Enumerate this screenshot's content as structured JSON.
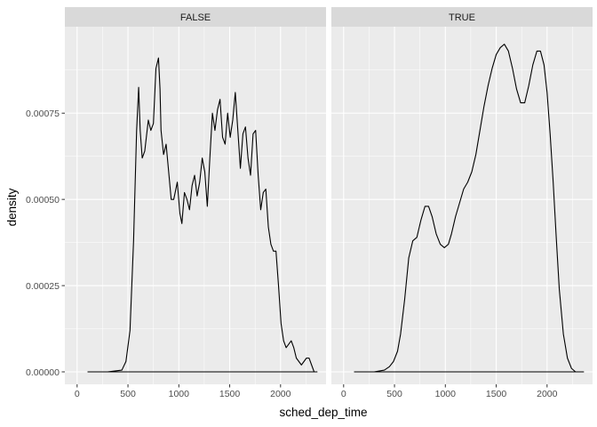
{
  "chart_data": {
    "type": "area",
    "geom": "density",
    "xlabel": "sched_dep_time",
    "ylabel": "density",
    "xlim": [
      0,
      2400
    ],
    "ylim": [
      0,
      0.00095
    ],
    "x_ticks": [
      0,
      500,
      1000,
      1500,
      2000
    ],
    "x_tick_labels": [
      "0",
      "500",
      "1000",
      "1500",
      "2000"
    ],
    "y_ticks": [
      0,
      0.00025,
      0.0005,
      0.00075
    ],
    "y_tick_labels": [
      "0.00000",
      "0.00025",
      "0.00050",
      "0.00075"
    ],
    "grid": true,
    "colors": {
      "panel_bg": "#EBEBEB",
      "strip_bg": "#D9D9D9",
      "grid_major": "#FFFFFF",
      "line": "#000000"
    },
    "panels": [
      {
        "strip_label": "FALSE",
        "x": [
          106,
          300,
          440,
          480,
          520,
          555,
          585,
          605,
          620,
          640,
          665,
          700,
          725,
          750,
          775,
          800,
          815,
          825,
          850,
          875,
          900,
          925,
          950,
          985,
          1010,
          1030,
          1055,
          1080,
          1105,
          1130,
          1155,
          1180,
          1205,
          1230,
          1255,
          1280,
          1305,
          1330,
          1355,
          1380,
          1405,
          1430,
          1455,
          1480,
          1505,
          1530,
          1555,
          1580,
          1605,
          1630,
          1655,
          1680,
          1705,
          1730,
          1755,
          1780,
          1805,
          1830,
          1855,
          1880,
          1905,
          1930,
          1955,
          1980,
          2005,
          2030,
          2055,
          2080,
          2105,
          2130,
          2155,
          2180,
          2205,
          2230,
          2255,
          2280,
          2305,
          2330,
          2350,
          2355,
          2359
        ],
        "y": [
          0,
          0,
          5e-06,
          3e-05,
          0.00012,
          0.00038,
          0.0007,
          0.000825,
          0.0007,
          0.00062,
          0.00064,
          0.00073,
          0.0007,
          0.00072,
          0.00088,
          0.00091,
          0.00082,
          0.0007,
          0.00063,
          0.00066,
          0.00058,
          0.0005,
          0.0005,
          0.00055,
          0.00046,
          0.00043,
          0.00052,
          0.0005,
          0.00047,
          0.00054,
          0.00057,
          0.00051,
          0.00055,
          0.00062,
          0.00058,
          0.00048,
          0.00062,
          0.00075,
          0.0007,
          0.00076,
          0.00079,
          0.00068,
          0.00066,
          0.00075,
          0.00068,
          0.00073,
          0.00081,
          0.0007,
          0.00059,
          0.00069,
          0.00071,
          0.00062,
          0.00057,
          0.00069,
          0.0007,
          0.00057,
          0.00047,
          0.00052,
          0.00053,
          0.00042,
          0.00037,
          0.00035,
          0.00035,
          0.00025,
          0.00014,
          9e-05,
          7e-05,
          8e-05,
          9e-05,
          7e-05,
          4e-05,
          3e-05,
          2e-05,
          3e-05,
          4e-05,
          4e-05,
          2e-05,
          0,
          0,
          0,
          0
        ]
      },
      {
        "strip_label": "TRUE",
        "x": [
          106,
          300,
          400,
          450,
          490,
          530,
          560,
          600,
          640,
          680,
          720,
          760,
          800,
          835,
          870,
          910,
          950,
          990,
          1030,
          1060,
          1100,
          1140,
          1180,
          1220,
          1260,
          1300,
          1340,
          1380,
          1420,
          1460,
          1500,
          1540,
          1580,
          1620,
          1660,
          1700,
          1740,
          1780,
          1820,
          1860,
          1900,
          1935,
          1970,
          2000,
          2030,
          2060,
          2090,
          2120,
          2160,
          2200,
          2240,
          2280,
          2320,
          2355,
          2359
        ],
        "y": [
          0,
          0,
          5e-06,
          1.5e-05,
          3e-05,
          6e-05,
          0.00011,
          0.00021,
          0.00033,
          0.00038,
          0.00039,
          0.00044,
          0.00048,
          0.00048,
          0.00045,
          0.0004,
          0.00037,
          0.00036,
          0.00037,
          0.0004,
          0.00045,
          0.00049,
          0.00053,
          0.00055,
          0.00058,
          0.00063,
          0.0007,
          0.00077,
          0.00083,
          0.00088,
          0.00092,
          0.00094,
          0.00095,
          0.00093,
          0.00088,
          0.00082,
          0.00078,
          0.00078,
          0.00083,
          0.00089,
          0.00093,
          0.00093,
          0.00089,
          0.00081,
          0.00069,
          0.00055,
          0.00039,
          0.00024,
          0.00011,
          4e-05,
          1e-05,
          0,
          0,
          0,
          0
        ]
      }
    ]
  }
}
